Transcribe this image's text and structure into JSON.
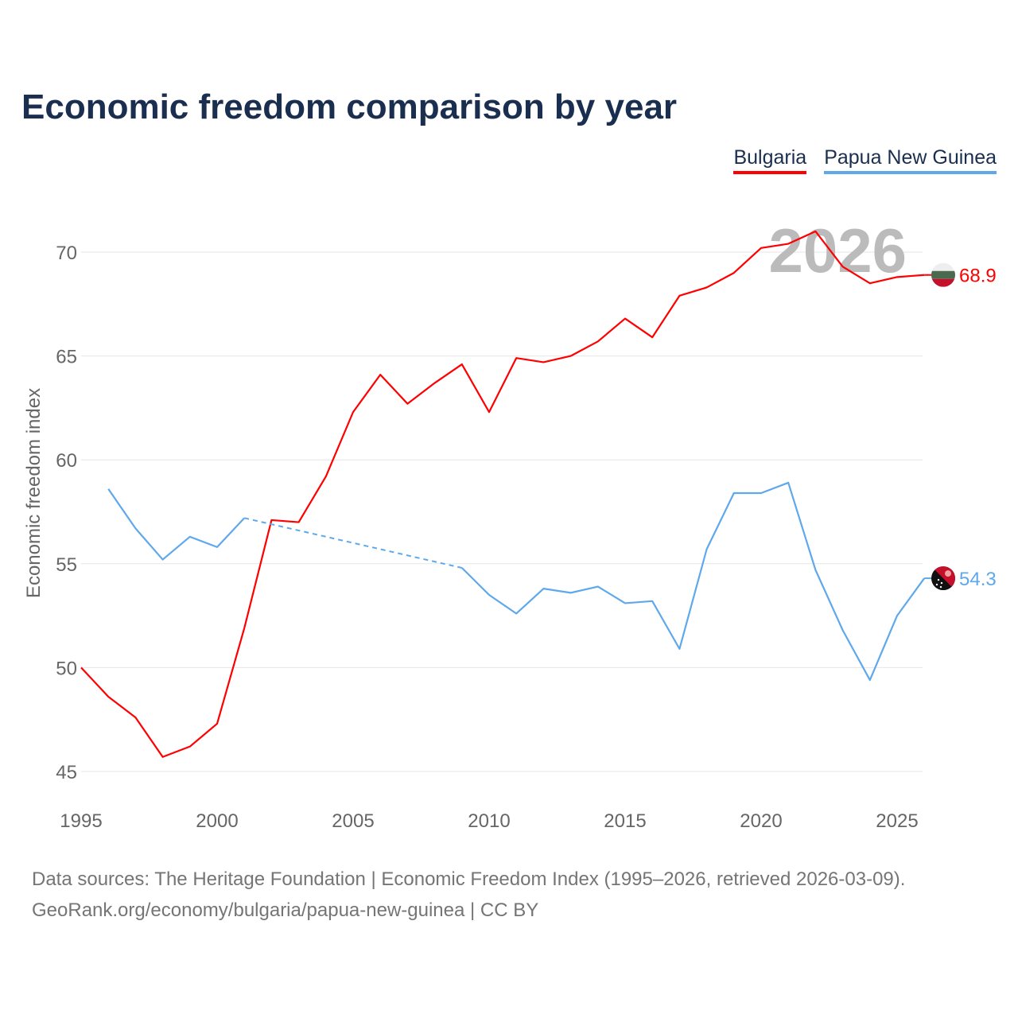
{
  "title": "Economic freedom comparison by year",
  "footer": {
    "line1": "Data sources: The Heritage Foundation | Economic Freedom Index (1995–2026, retrieved 2026-03-09).",
    "line2": "GeoRank.org/economy/bulgaria/papua-new-guinea | CC BY"
  },
  "chart_data": {
    "type": "line",
    "title": "Economic freedom comparison by year",
    "xlabel": "",
    "ylabel": "Economic freedom index",
    "year_watermark": "2026",
    "xlim": [
      1995,
      2026
    ],
    "ylim": [
      44,
      73
    ],
    "xticks": [
      1995,
      2000,
      2005,
      2010,
      2015,
      2020,
      2025
    ],
    "yticks": [
      45,
      50,
      55,
      60,
      65,
      70
    ],
    "grid": true,
    "legend": "top-right",
    "x": [
      1995,
      1996,
      1997,
      1998,
      1999,
      2000,
      2001,
      2002,
      2003,
      2004,
      2005,
      2006,
      2007,
      2008,
      2009,
      2010,
      2011,
      2012,
      2013,
      2014,
      2015,
      2016,
      2017,
      2018,
      2019,
      2020,
      2021,
      2022,
      2023,
      2024,
      2025,
      2026
    ],
    "series": [
      {
        "name": "Bulgaria",
        "color": "#ff0000",
        "end_label": "68.9",
        "values": [
          50.0,
          48.6,
          47.6,
          45.7,
          46.2,
          47.3,
          51.9,
          57.1,
          57.0,
          59.2,
          62.3,
          64.1,
          62.7,
          63.7,
          64.6,
          62.3,
          64.9,
          64.7,
          65.0,
          65.7,
          66.8,
          65.9,
          67.9,
          68.3,
          69.0,
          70.2,
          70.4,
          71.0,
          69.3,
          68.5,
          68.8,
          68.9
        ]
      },
      {
        "name": "Papua New Guinea",
        "color": "#5fa8ec",
        "end_label": "54.3",
        "values": [
          null,
          58.6,
          56.7,
          55.2,
          56.3,
          55.8,
          57.2,
          null,
          null,
          null,
          null,
          null,
          null,
          null,
          54.8,
          53.5,
          52.6,
          53.8,
          53.6,
          53.9,
          53.1,
          53.2,
          50.9,
          55.7,
          58.4,
          58.4,
          58.9,
          54.7,
          51.8,
          49.4,
          52.5,
          54.3
        ]
      }
    ]
  }
}
